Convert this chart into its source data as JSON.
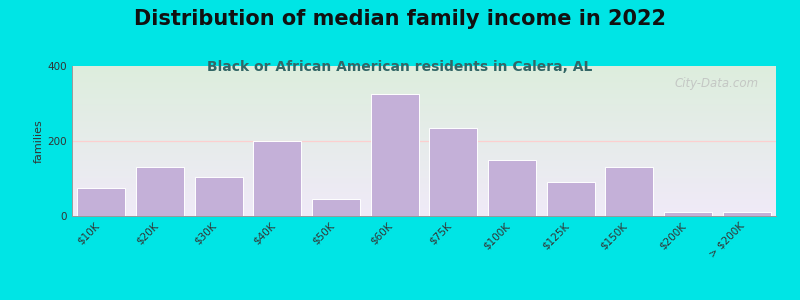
{
  "title": "Distribution of median family income in 2022",
  "subtitle": "Black or African American residents in Calera, AL",
  "ylabel": "families",
  "categories": [
    "$10K",
    "$20K",
    "$30K",
    "$40K",
    "$50K",
    "$60K",
    "$75K",
    "$100K",
    "$125K",
    "$150K",
    "$200K",
    "> $200K"
  ],
  "values": [
    75,
    130,
    105,
    200,
    45,
    325,
    235,
    150,
    90,
    130,
    10,
    10
  ],
  "bar_color": "#c4b0d8",
  "bar_edge_color": "#ffffff",
  "ylim": [
    0,
    400
  ],
  "yticks": [
    0,
    200,
    400
  ],
  "background_color": "#00e5e5",
  "plot_bg_top": "#ddeedd",
  "plot_bg_bottom": "#f0eaf8",
  "title_fontsize": 15,
  "subtitle_fontsize": 10,
  "ylabel_fontsize": 8,
  "tick_label_fontsize": 7.5,
  "watermark_text": "City-Data.com",
  "grid_color": "#ffcccc",
  "grid_alpha": 0.9,
  "subtitle_color": "#336666"
}
